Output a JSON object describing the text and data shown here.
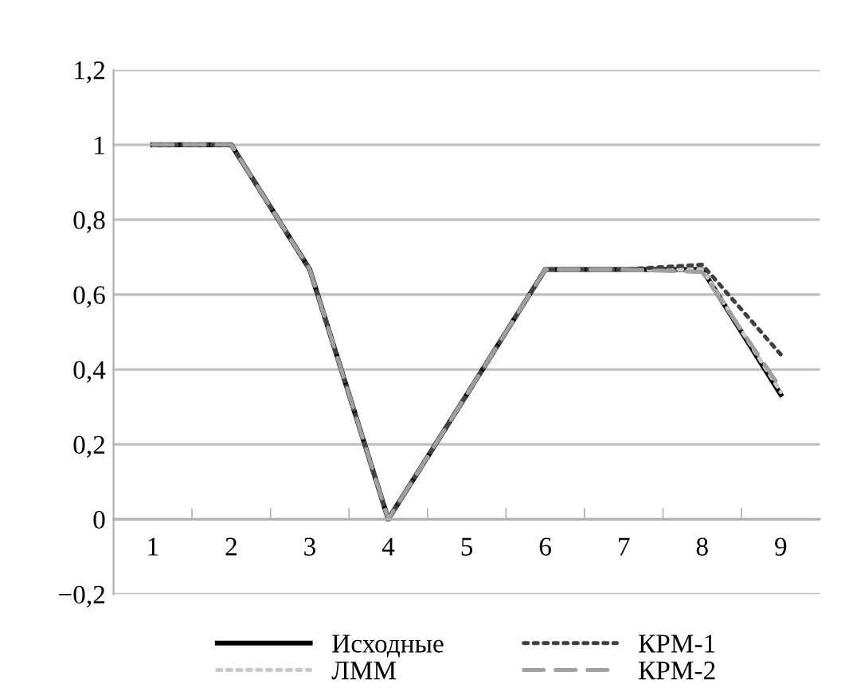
{
  "chart_data": {
    "type": "line",
    "categories": [
      "1",
      "2",
      "3",
      "4",
      "5",
      "6",
      "7",
      "8",
      "9"
    ],
    "series": [
      {
        "name": "Исходные",
        "color": "#000000",
        "line_style": "solid",
        "values": [
          1,
          1,
          0.667,
          0,
          0.333,
          0.667,
          0.667,
          0.667,
          0.333
        ]
      },
      {
        "name": "ЛММ",
        "color": "#c8c8c8",
        "line_style": "dotted",
        "values": [
          1,
          1,
          0.667,
          0,
          0.333,
          0.667,
          0.667,
          0.667,
          0.34
        ]
      },
      {
        "name": "КРМ-1",
        "color": "#404040",
        "line_style": "dotted",
        "values": [
          1,
          1,
          0.667,
          0,
          0.333,
          0.667,
          0.667,
          0.68,
          0.44
        ]
      },
      {
        "name": "КРМ-2",
        "color": "#a0a0a0",
        "line_style": "dashed",
        "values": [
          1,
          1,
          0.667,
          0,
          0.333,
          0.667,
          0.667,
          0.66,
          0.35
        ]
      }
    ],
    "ylim": [
      -0.2,
      1.2
    ],
    "yticks": [
      {
        "value": -0.2,
        "label": "−0,2"
      },
      0,
      {
        "value": 0.2,
        "label": "0,2"
      },
      {
        "value": 0.4,
        "label": "0,4"
      },
      {
        "value": 0.6,
        "label": "0,6"
      },
      {
        "value": 0.8,
        "label": "0,8"
      },
      1,
      {
        "value": 1.2,
        "label": "1,2"
      }
    ],
    "grid": "y",
    "legend": "bottom",
    "marker": "none"
  }
}
